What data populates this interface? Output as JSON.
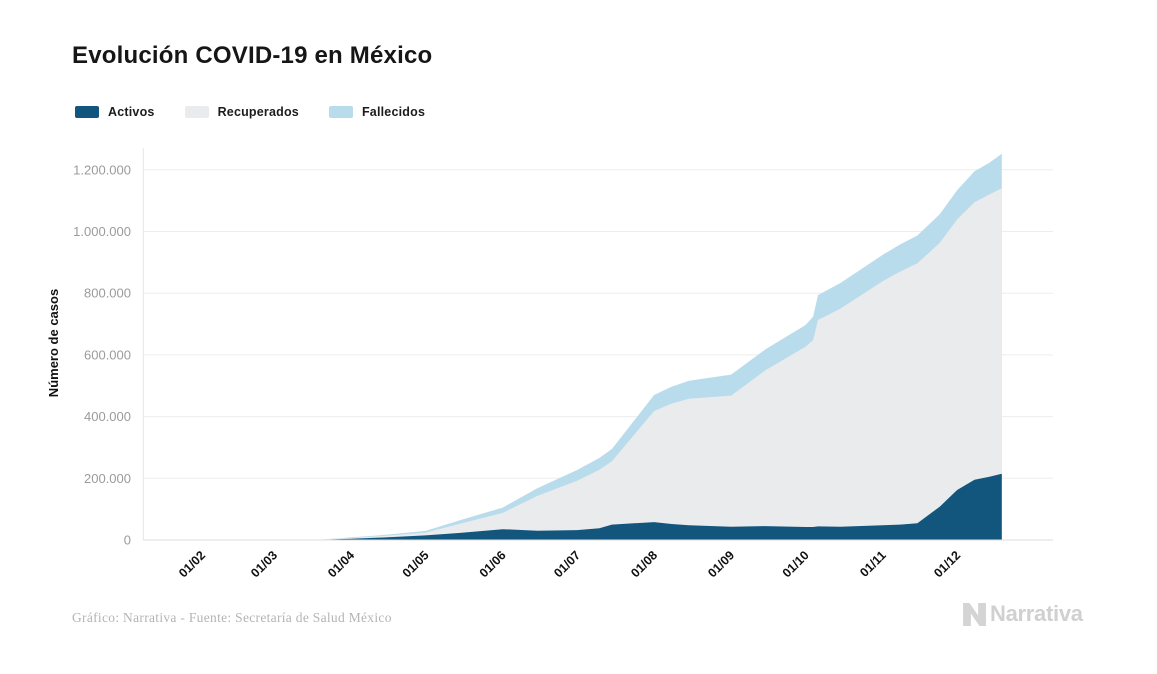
{
  "header": {
    "title": "Evolución COVID-19 en México"
  },
  "legend": {
    "items": [
      {
        "label": "Activos",
        "color": "#12557d"
      },
      {
        "label": "Recuperados",
        "color": "#e9ebec"
      },
      {
        "label": "Fallecidos",
        "color": "#b9dcec"
      }
    ]
  },
  "chart_data": {
    "type": "area",
    "stacked": true,
    "title": "Evolución COVID-19 en México",
    "xlabel": "",
    "ylabel": "Número de casos",
    "grid": "horizontal",
    "legend_position": "top-left",
    "ylim": [
      0,
      1264000
    ],
    "y_ticks": [
      {
        "value": 0,
        "label": "0"
      },
      {
        "value": 200000,
        "label": "200.000"
      },
      {
        "value": 400000,
        "label": "400.000"
      },
      {
        "value": 600000,
        "label": "600.000"
      },
      {
        "value": 800000,
        "label": "800.000"
      },
      {
        "value": 1000000,
        "label": "1.000.000"
      },
      {
        "value": 1200000,
        "label": "1.200.000"
      }
    ],
    "x_tick_labels": [
      "01/02",
      "01/03",
      "01/04",
      "01/05",
      "01/06",
      "01/07",
      "01/08",
      "01/09",
      "01/10",
      "01/11",
      "01/12"
    ],
    "series_order_bottom_to_top": [
      "Activos",
      "Recuperados",
      "Fallecidos"
    ],
    "series_colors": {
      "activos": "#12557d",
      "recuperados": "#e9ebec",
      "fallecidos": "#b9dcec"
    },
    "points": [
      {
        "date": "09/01",
        "activos": 0,
        "recuperados": 0,
        "fallecidos": 0
      },
      {
        "date": "01/02",
        "activos": 0,
        "recuperados": 0,
        "fallecidos": 0
      },
      {
        "date": "01/03",
        "activos": 0,
        "recuperados": 0,
        "fallecidos": 0
      },
      {
        "date": "12/03",
        "activos": 300,
        "recuperados": 100,
        "fallecidos": 20
      },
      {
        "date": "20/03",
        "activos": 1000,
        "recuperados": 500,
        "fallecidos": 200
      },
      {
        "date": "01/04",
        "activos": 4000,
        "recuperados": 2500,
        "fallecidos": 1800
      },
      {
        "date": "15/04",
        "activos": 8500,
        "recuperados": 5000,
        "fallecidos": 3200
      },
      {
        "date": "01/05",
        "activos": 15000,
        "recuperados": 9000,
        "fallecidos": 5500
      },
      {
        "date": "15/05",
        "activos": 23000,
        "recuperados": 30000,
        "fallecidos": 11500
      },
      {
        "date": "01/06",
        "activos": 35000,
        "recuperados": 53000,
        "fallecidos": 17000
      },
      {
        "date": "15/06",
        "activos": 30000,
        "recuperados": 113000,
        "fallecidos": 25000
      },
      {
        "date": "01/07",
        "activos": 32000,
        "recuperados": 160000,
        "fallecidos": 35000
      },
      {
        "date": "10/07",
        "activos": 38000,
        "recuperados": 190000,
        "fallecidos": 38000
      },
      {
        "date": "15/07",
        "activos": 50000,
        "recuperados": 205000,
        "fallecidos": 40000
      },
      {
        "date": "01/08",
        "activos": 58000,
        "recuperados": 360000,
        "fallecidos": 52000
      },
      {
        "date": "08/08",
        "activos": 52000,
        "recuperados": 390000,
        "fallecidos": 55000
      },
      {
        "date": "15/08",
        "activos": 48000,
        "recuperados": 410000,
        "fallecidos": 58000
      },
      {
        "date": "01/09",
        "activos": 43000,
        "recuperados": 425000,
        "fallecidos": 68000
      },
      {
        "date": "15/09",
        "activos": 45000,
        "recuperados": 506000,
        "fallecidos": 68000
      },
      {
        "date": "01/10",
        "activos": 42000,
        "recuperados": 585000,
        "fallecidos": 70000
      },
      {
        "date": "04/10",
        "activos": 42000,
        "recuperados": 606000,
        "fallecidos": 76000
      },
      {
        "date": "06/10",
        "activos": 44000,
        "recuperados": 669000,
        "fallecidos": 81000
      },
      {
        "date": "15/10",
        "activos": 43000,
        "recuperados": 707000,
        "fallecidos": 83000
      },
      {
        "date": "01/11",
        "activos": 48000,
        "recuperados": 791000,
        "fallecidos": 85000
      },
      {
        "date": "08/11",
        "activos": 50000,
        "recuperados": 820000,
        "fallecidos": 88000
      },
      {
        "date": "15/11",
        "activos": 54000,
        "recuperados": 843000,
        "fallecidos": 90000
      },
      {
        "date": "24/11",
        "activos": 108000,
        "recuperados": 855000,
        "fallecidos": 93000
      },
      {
        "date": "01/12",
        "activos": 162000,
        "recuperados": 877000,
        "fallecidos": 95000
      },
      {
        "date": "08/12",
        "activos": 195000,
        "recuperados": 900000,
        "fallecidos": 100000
      },
      {
        "date": "14/12",
        "activos": 205000,
        "recuperados": 915000,
        "fallecidos": 103000
      },
      {
        "date": "19/12",
        "activos": 215000,
        "recuperados": 925000,
        "fallecidos": 112000
      }
    ]
  },
  "footer": {
    "credit": "Gráfico: Narrativa - Fuente: Secretaría de Salud México",
    "brand": "Narrativa"
  }
}
